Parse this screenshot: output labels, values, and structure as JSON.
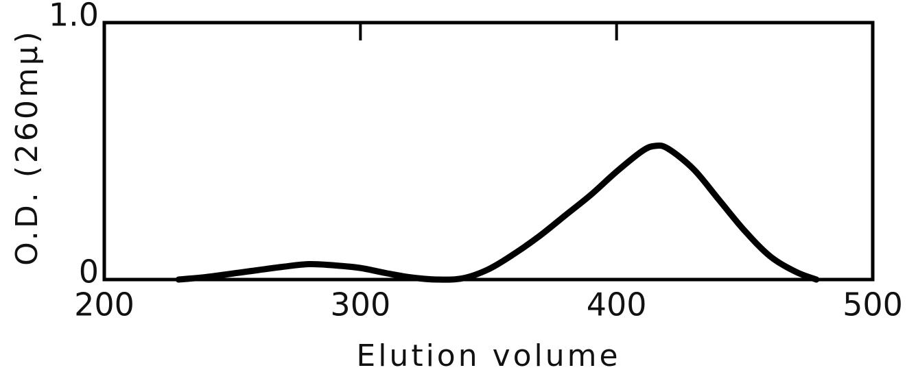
{
  "chart_data": {
    "type": "line",
    "xlabel": "Elution volume",
    "ylabel": "O.D. (260mμ)",
    "x": [
      229,
      240,
      255,
      270,
      280,
      290,
      300,
      310,
      320,
      330,
      340,
      350,
      360,
      370,
      380,
      390,
      400,
      410,
      415,
      420,
      430,
      440,
      450,
      460,
      470,
      478
    ],
    "series": [
      {
        "color": "#000000",
        "values": [
          0,
          0.01,
          0.03,
          0.05,
          0.06,
          0.055,
          0.045,
          0.025,
          0.008,
          0,
          0.005,
          0.04,
          0.1,
          0.17,
          0.25,
          0.33,
          0.42,
          0.5,
          0.52,
          0.51,
          0.43,
          0.31,
          0.19,
          0.09,
          0.03,
          0
        ]
      }
    ],
    "xlim": [
      200,
      500
    ],
    "xticks": [
      200,
      300,
      400,
      500
    ],
    "ylim": [
      0,
      1
    ],
    "yticks": [
      0,
      {
        "value": 1,
        "label": "1.0"
      }
    ]
  }
}
